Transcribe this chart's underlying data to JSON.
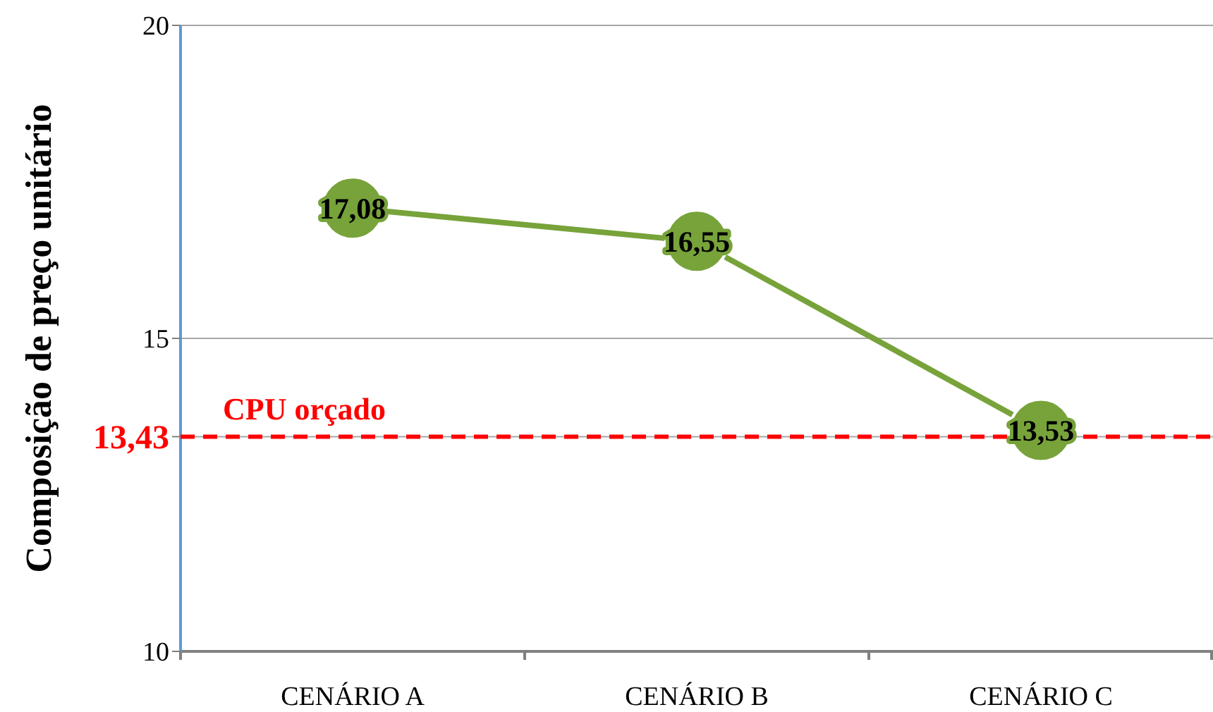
{
  "chart_data": {
    "type": "line",
    "ylabel": "Composição de preço unitário",
    "categories": [
      "CENÁRIO A",
      "CENÁRIO B",
      "CENÁRIO C"
    ],
    "series": [
      {
        "color": "#77a33a",
        "values": [
          17.08,
          16.55,
          13.53
        ],
        "value_labels": [
          "17,08",
          "16,55",
          "13,53"
        ]
      }
    ],
    "ylim": [
      10,
      20
    ],
    "yticks": [
      10,
      {
        "value": 13.43,
        "label": "13,43"
      },
      15,
      20
    ],
    "grid": "y",
    "marker": "circle",
    "line_style": "solid",
    "ref_lines": [
      {
        "axis": "y",
        "value": 13.43,
        "label": "CPU orçado",
        "color": "#ff0000",
        "line_style": "dashed"
      }
    ]
  }
}
